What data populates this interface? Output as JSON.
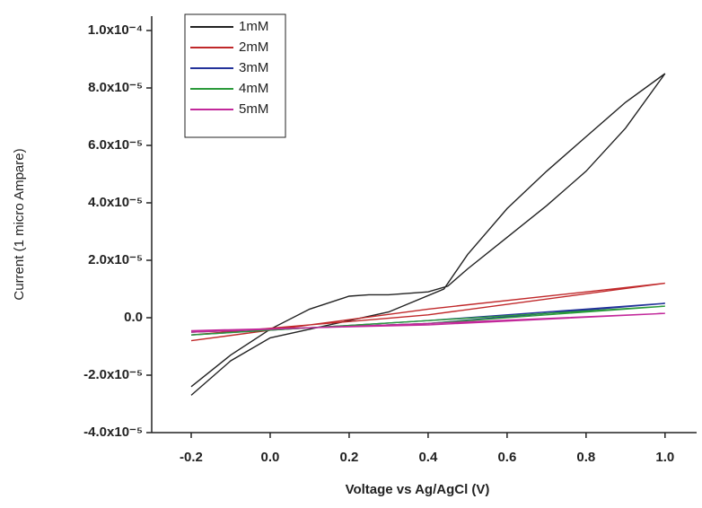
{
  "chart_data": {
    "type": "line",
    "x_label": "Voltage vs Ag/AgCl (V)",
    "y_label": "Current (1 micro Ampare)",
    "xlim": [
      -0.3,
      1.08
    ],
    "ylim": [
      -4e-05,
      0.000105
    ],
    "xticks": [
      -0.2,
      {
        "value": 0,
        "label": "0.0"
      },
      0.2,
      0.4,
      0.6,
      0.8,
      {
        "value": 1,
        "label": "1.0"
      }
    ],
    "yticks": [
      {
        "value": -4e-05,
        "label": "-4.0x10⁻⁵"
      },
      {
        "value": -2e-05,
        "label": "-2.0x10⁻⁵"
      },
      {
        "value": 0,
        "label": "0.0"
      },
      {
        "value": 2e-05,
        "label": "2.0x10⁻⁵"
      },
      {
        "value": 4e-05,
        "label": "4.0x10⁻⁵"
      },
      {
        "value": 6e-05,
        "label": "6.0x10⁻⁵"
      },
      {
        "value": 8e-05,
        "label": "8.0x10⁻⁵"
      },
      {
        "value": 0.0001,
        "label": "1.0x10⁻⁴"
      }
    ],
    "legend": "top-left",
    "series": [
      {
        "name": "1mM",
        "color": "#222222",
        "x": [
          -0.2,
          -0.1,
          0,
          0.1,
          0.2,
          0.25,
          0.3,
          0.4,
          0.45,
          0.5,
          0.6,
          0.7,
          0.8,
          0.9,
          1.0,
          0.9,
          0.8,
          0.7,
          0.6,
          0.5,
          0.44,
          0.3,
          0.2,
          0.1,
          0,
          -0.1,
          -0.2
        ],
        "values": [
          -2.4e-05,
          -1.3e-05,
          -4e-06,
          3e-06,
          7.5e-06,
          8e-06,
          8e-06,
          9e-06,
          1.1e-05,
          1.7e-05,
          2.8e-05,
          3.9e-05,
          5.1e-05,
          6.6e-05,
          8.5e-05,
          7.5e-05,
          6.3e-05,
          5.1e-05,
          3.8e-05,
          2.2e-05,
          1e-05,
          2e-06,
          -1e-06,
          -4e-06,
          -7e-06,
          -1.5e-05,
          -2.7e-05
        ]
      },
      {
        "name": "2mM",
        "color": "#c0282a",
        "x": [
          -0.2,
          0.4,
          1.0,
          0.4,
          -0.2
        ],
        "values": [
          -8e-06,
          3e-06,
          1.2e-05,
          1e-06,
          -6e-06
        ]
      },
      {
        "name": "3mM",
        "color": "#23329a",
        "x": [
          -0.2,
          0.4,
          1.0,
          0.4,
          -0.2
        ],
        "values": [
          -6e-06,
          -1e-06,
          5e-06,
          -2e-06,
          -5e-06
        ]
      },
      {
        "name": "4mM",
        "color": "#2a9a3a",
        "x": [
          -0.2,
          0.4,
          1.0,
          0.4,
          -0.2
        ],
        "values": [
          -6e-06,
          -1e-06,
          4e-06,
          -2e-06,
          -5e-06
        ]
      },
      {
        "name": "5mM",
        "color": "#c2289a",
        "x": [
          -0.2,
          0.4,
          1.0,
          0.4,
          -0.2
        ],
        "values": [
          -5e-06,
          -2e-06,
          1.5e-06,
          -2.5e-06,
          -4.5e-06
        ]
      }
    ]
  }
}
